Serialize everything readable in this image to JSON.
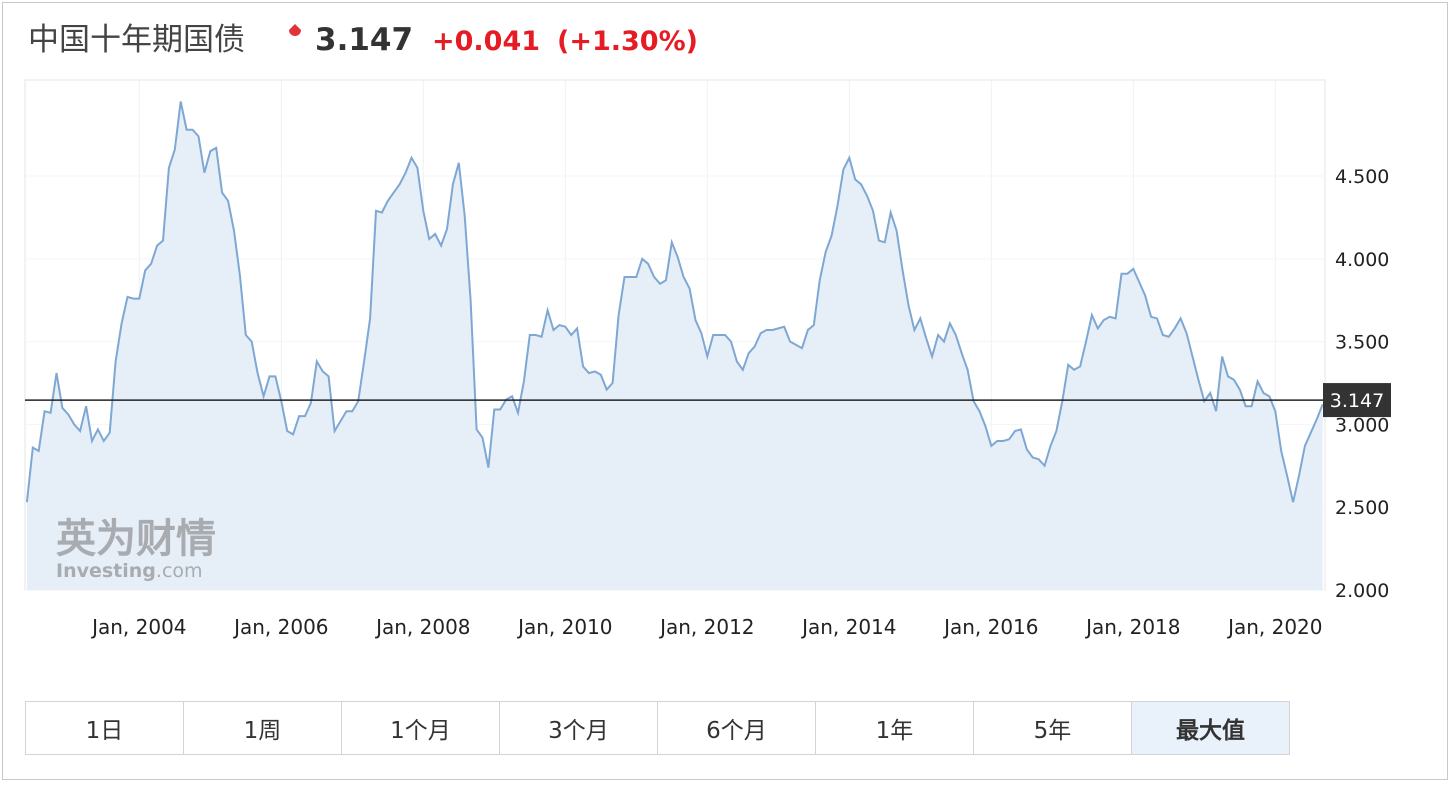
{
  "header": {
    "title": "中国十年期国债",
    "price": "3.147",
    "change": "+0.041",
    "change_percent": "(+1.30%)"
  },
  "watermark": {
    "brand_cn": "英为财情",
    "brand_en": "Investing",
    "brand_suffix": ".com"
  },
  "buttons": [
    "1日",
    "1周",
    "1个月",
    "3个月",
    "6个月",
    "1年",
    "5年",
    "最大值"
  ],
  "selected_button": "最大值",
  "chart_data": {
    "type": "area",
    "x": [
      "2002-06",
      "2002-07",
      "2002-08",
      "2002-09",
      "2002-10",
      "2002-11",
      "2002-12",
      "2003-01",
      "2003-02",
      "2003-03",
      "2003-04",
      "2003-05",
      "2003-06",
      "2003-07",
      "2003-08",
      "2003-09",
      "2003-10",
      "2003-11",
      "2003-12",
      "2004-01",
      "2004-02",
      "2004-03",
      "2004-04",
      "2004-05",
      "2004-06",
      "2004-07",
      "2004-08",
      "2004-09",
      "2004-10",
      "2004-11",
      "2004-12",
      "2005-01",
      "2005-02",
      "2005-03",
      "2005-04",
      "2005-05",
      "2005-06",
      "2005-07",
      "2005-08",
      "2005-09",
      "2005-10",
      "2005-11",
      "2005-12",
      "2006-01",
      "2006-02",
      "2006-03",
      "2006-04",
      "2006-05",
      "2006-06",
      "2006-07",
      "2006-08",
      "2006-09",
      "2006-10",
      "2006-11",
      "2006-12",
      "2007-01",
      "2007-02",
      "2007-03",
      "2007-04",
      "2007-05",
      "2007-06",
      "2007-07",
      "2007-08",
      "2007-09",
      "2007-10",
      "2007-11",
      "2007-12",
      "2008-01",
      "2008-02",
      "2008-03",
      "2008-04",
      "2008-05",
      "2008-06",
      "2008-07",
      "2008-08",
      "2008-09",
      "2008-10",
      "2008-11",
      "2008-12",
      "2009-01",
      "2009-02",
      "2009-03",
      "2009-04",
      "2009-05",
      "2009-06",
      "2009-07",
      "2009-08",
      "2009-09",
      "2009-10",
      "2009-11",
      "2009-12",
      "2010-01",
      "2010-02",
      "2010-03",
      "2010-04",
      "2010-05",
      "2010-06",
      "2010-07",
      "2010-08",
      "2010-09",
      "2010-10",
      "2010-11",
      "2010-12",
      "2011-01",
      "2011-02",
      "2011-03",
      "2011-04",
      "2011-05",
      "2011-06",
      "2011-07",
      "2011-08",
      "2011-09",
      "2011-10",
      "2011-11",
      "2011-12",
      "2012-01",
      "2012-02",
      "2012-03",
      "2012-04",
      "2012-05",
      "2012-06",
      "2012-07",
      "2012-08",
      "2012-09",
      "2012-10",
      "2012-11",
      "2012-12",
      "2013-01",
      "2013-02",
      "2013-03",
      "2013-04",
      "2013-05",
      "2013-06",
      "2013-07",
      "2013-08",
      "2013-09",
      "2013-10",
      "2013-11",
      "2013-12",
      "2014-01",
      "2014-02",
      "2014-03",
      "2014-04",
      "2014-05",
      "2014-06",
      "2014-07",
      "2014-08",
      "2014-09",
      "2014-10",
      "2014-11",
      "2014-12",
      "2015-01",
      "2015-02",
      "2015-03",
      "2015-04",
      "2015-05",
      "2015-06",
      "2015-07",
      "2015-08",
      "2015-09",
      "2015-10",
      "2015-11",
      "2015-12",
      "2016-01",
      "2016-02",
      "2016-03",
      "2016-04",
      "2016-05",
      "2016-06",
      "2016-07",
      "2016-08",
      "2016-09",
      "2016-10",
      "2016-11",
      "2016-12",
      "2017-01",
      "2017-02",
      "2017-03",
      "2017-04",
      "2017-05",
      "2017-06",
      "2017-07",
      "2017-08",
      "2017-09",
      "2017-10",
      "2017-11",
      "2017-12",
      "2018-01",
      "2018-02",
      "2018-03",
      "2018-04",
      "2018-05",
      "2018-06",
      "2018-07",
      "2018-08",
      "2018-09",
      "2018-10",
      "2018-11",
      "2018-12",
      "2019-01",
      "2019-02",
      "2019-03",
      "2019-04",
      "2019-05",
      "2019-06",
      "2019-07",
      "2019-08",
      "2019-09",
      "2019-10",
      "2019-11",
      "2019-12",
      "2020-01",
      "2020-02",
      "2020-03",
      "2020-04",
      "2020-05",
      "2020-06",
      "2020-07",
      "2020-08",
      "2020-09"
    ],
    "series": [
      {
        "color": "#7ea8d3",
        "fill": "#e6eef7",
        "values": [
          2.53,
          2.86,
          2.84,
          3.08,
          3.07,
          3.31,
          3.1,
          3.06,
          3.0,
          2.96,
          3.11,
          2.9,
          2.97,
          2.9,
          2.95,
          3.38,
          3.61,
          3.77,
          3.76,
          3.76,
          3.93,
          3.97,
          4.08,
          4.11,
          4.55,
          4.66,
          4.95,
          4.78,
          4.78,
          4.74,
          4.52,
          4.65,
          4.67,
          4.4,
          4.35,
          4.17,
          3.9,
          3.54,
          3.5,
          3.31,
          3.17,
          3.29,
          3.29,
          3.14,
          2.96,
          2.94,
          3.05,
          3.05,
          3.13,
          3.38,
          3.32,
          3.29,
          2.96,
          3.02,
          3.08,
          3.08,
          3.14,
          3.38,
          3.64,
          4.29,
          4.28,
          4.35,
          4.4,
          4.45,
          4.52,
          4.61,
          4.55,
          4.29,
          4.12,
          4.15,
          4.08,
          4.18,
          4.45,
          4.58,
          4.26,
          3.75,
          2.97,
          2.92,
          2.74,
          3.09,
          3.09,
          3.15,
          3.17,
          3.07,
          3.26,
          3.54,
          3.54,
          3.53,
          3.69,
          3.57,
          3.6,
          3.59,
          3.54,
          3.58,
          3.35,
          3.31,
          3.32,
          3.3,
          3.21,
          3.25,
          3.66,
          3.89,
          3.89,
          3.89,
          4.0,
          3.97,
          3.89,
          3.85,
          3.87,
          4.1,
          4.01,
          3.89,
          3.82,
          3.63,
          3.55,
          3.41,
          3.54,
          3.54,
          3.54,
          3.5,
          3.38,
          3.33,
          3.43,
          3.47,
          3.55,
          3.57,
          3.57,
          3.58,
          3.59,
          3.5,
          3.48,
          3.46,
          3.57,
          3.6,
          3.87,
          4.04,
          4.14,
          4.32,
          4.54,
          4.61,
          4.48,
          4.45,
          4.38,
          4.29,
          4.11,
          4.1,
          4.28,
          4.17,
          3.93,
          3.72,
          3.57,
          3.64,
          3.52,
          3.41,
          3.54,
          3.5,
          3.61,
          3.54,
          3.43,
          3.33,
          3.14,
          3.08,
          2.99,
          2.87,
          2.9,
          2.9,
          2.91,
          2.96,
          2.97,
          2.85,
          2.8,
          2.79,
          2.75,
          2.87,
          2.96,
          3.14,
          3.36,
          3.33,
          3.35,
          3.5,
          3.66,
          3.58,
          3.63,
          3.65,
          3.64,
          3.91,
          3.91,
          3.94,
          3.86,
          3.78,
          3.65,
          3.64,
          3.54,
          3.53,
          3.58,
          3.64,
          3.55,
          3.41,
          3.27,
          3.14,
          3.19,
          3.08,
          3.41,
          3.29,
          3.27,
          3.21,
          3.11,
          3.11,
          3.26,
          3.19,
          3.17,
          3.08,
          2.84,
          2.69,
          2.53,
          2.69,
          2.87,
          2.95,
          3.03,
          3.12
        ]
      }
    ],
    "reference_line": 3.147,
    "xlim": [
      2002.39,
      2020.7
    ],
    "xticks": [
      {
        "value": 2004,
        "label": "Jan, 2004"
      },
      {
        "value": 2006,
        "label": "Jan, 2006"
      },
      {
        "value": 2008,
        "label": "Jan, 2008"
      },
      {
        "value": 2010,
        "label": "Jan, 2010"
      },
      {
        "value": 2012,
        "label": "Jan, 2012"
      },
      {
        "value": 2014,
        "label": "Jan, 2014"
      },
      {
        "value": 2016,
        "label": "Jan, 2016"
      },
      {
        "value": 2018,
        "label": "Jan, 2018"
      },
      {
        "value": 2020,
        "label": "Jan, 2020"
      }
    ],
    "ylim": [
      2.0,
      5.08
    ],
    "yticks": [
      {
        "value": 2,
        "label": "2.000"
      },
      {
        "value": 2.5,
        "label": "2.500"
      },
      {
        "value": 3,
        "label": "3.000"
      },
      {
        "value": 3.5,
        "label": "3.500"
      },
      {
        "value": 4,
        "label": "4.000"
      },
      {
        "value": 4.5,
        "label": "4.500"
      }
    ],
    "grid": true
  }
}
